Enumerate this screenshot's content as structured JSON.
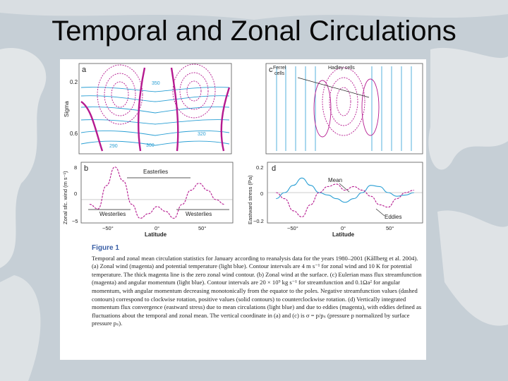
{
  "slide": {
    "title": "Temporal and Zonal Circulations"
  },
  "colors": {
    "magenta": "#b5198f",
    "lightblue": "#2a9fd4",
    "black": "#222222",
    "caption_label": "#3a5fa6"
  },
  "panels": {
    "a": {
      "letter": "a",
      "ylabel": "Sigma",
      "yticks": [
        "0.2",
        "0.6"
      ],
      "contour_labels": [
        "350",
        "320",
        "290",
        "300"
      ]
    },
    "c": {
      "letter": "c",
      "annotations": [
        "Ferrel\ncells",
        "Hadley cells"
      ]
    },
    "b": {
      "letter": "b",
      "ylabel": "Zonal sfc. wind (m s⁻¹)",
      "xlabel": "Latitude",
      "yticks": [
        "8",
        "0",
        "−5"
      ],
      "xticks": [
        "−50°",
        "0°",
        "50°"
      ],
      "annotations": [
        "Easterlies",
        "Westerlies",
        "Westerlies"
      ]
    },
    "d": {
      "letter": "d",
      "ylabel": "Eastward stress (Pa)",
      "xlabel": "Latitude",
      "yticks": [
        "0.2",
        "0",
        "−0.2"
      ],
      "xticks": [
        "−50°",
        "0°",
        "50°"
      ],
      "annotations": [
        "Mean",
        "Eddies"
      ]
    }
  },
  "chart_data": [
    {
      "type": "line",
      "panel": "b",
      "x": [
        -80,
        -70,
        -60,
        -50,
        -40,
        -30,
        -20,
        -10,
        0,
        10,
        20,
        30,
        40,
        50,
        60,
        70,
        80
      ],
      "series": [
        {
          "values": [
            -1,
            -2,
            3,
            7,
            4,
            -1,
            -4,
            -3,
            -1.5,
            -2.5,
            -4,
            -1,
            2,
            3.5,
            2,
            0,
            -1
          ]
        }
      ],
      "ylim": [
        -5,
        8
      ],
      "xlim": [
        -90,
        90
      ]
    },
    {
      "type": "line",
      "panel": "d",
      "x": [
        -80,
        -70,
        -60,
        -50,
        -40,
        -30,
        -20,
        -10,
        0,
        10,
        20,
        30,
        40,
        50,
        60,
        70,
        80
      ],
      "series": [
        {
          "name": "Mean",
          "values": [
            -0.05,
            0.0,
            0.06,
            0.12,
            0.06,
            0.0,
            -0.02,
            -0.05,
            -0.08,
            -0.05,
            0.0,
            0.06,
            0.05,
            0.0,
            -0.03,
            -0.02,
            0.0
          ]
        },
        {
          "name": "Eddies",
          "values": [
            0.0,
            -0.05,
            -0.15,
            -0.2,
            -0.1,
            0.0,
            0.05,
            0.07,
            0.02,
            0.05,
            0.02,
            -0.03,
            -0.1,
            -0.12,
            -0.05,
            0.0,
            0.02
          ]
        }
      ],
      "ylim": [
        -0.25,
        0.25
      ],
      "xlim": [
        -90,
        90
      ]
    }
  ],
  "caption": {
    "label": "Figure 1",
    "text": "Temporal and zonal mean circulation statistics for January according to reanalysis data for the years 1980–2001 (Kållberg et al. 2004). (a) Zonal wind (magenta) and potential temperature (light blue). Contour intervals are 4 m s⁻¹ for zonal wind and 10 K for potential temperature. The thick magenta line is the zero zonal wind contour. (b) Zonal wind at the surface. (c) Eulerian mass flux streamfunction (magenta) and angular momentum (light blue). Contour intervals are 20 × 10⁹ kg s⁻¹ for streamfunction and 0.1Ωa² for angular momentum, with angular momentum decreasing monotonically from the equator to the poles. Negative streamfunction values (dashed contours) correspond to clockwise rotation, positive values (solid contours) to counterclockwise rotation. (d) Vertically integrated momentum flux convergence (eastward stress) due to mean circulations (light blue) and due to eddies (magenta), with eddies defined as fluctuations about the temporal and zonal mean. The vertical coordinate in (a) and (c) is σ = p/pₛ (pressure p normalized by surface pressure pₛ)."
  }
}
